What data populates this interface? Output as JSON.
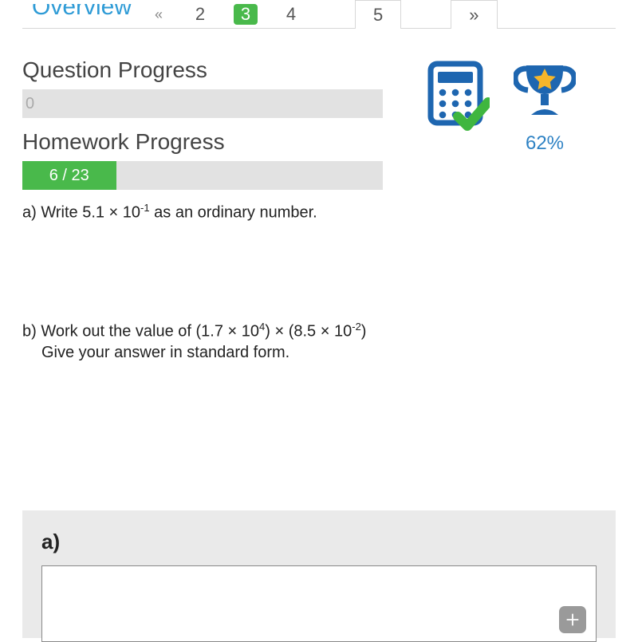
{
  "tabs": {
    "overview_label": "Overview",
    "items": [
      "«",
      "2",
      "3",
      "4",
      "5",
      "»"
    ],
    "current_index": 2
  },
  "progress": {
    "question": {
      "label": "Question Progress",
      "value_text": "0",
      "fill_pct": 0,
      "bar_bg": "#e2e2e2",
      "fill_color": "#49b94b"
    },
    "homework": {
      "label": "Homework Progress",
      "value_text": "6 / 23",
      "fill_pct": 26,
      "bar_bg": "#e2e2e2",
      "fill_color": "#49b94b"
    }
  },
  "questions": {
    "a": {
      "prefix": "a) Write 5.1 × 10",
      "exp": "-1",
      "suffix": " as an ordinary number."
    },
    "b": {
      "line1_p1": "b) Work out the value of (1.7 × 10",
      "line1_e1": "4",
      "line1_p2": ") × (8.5 × 10",
      "line1_e2": "-2",
      "line1_p3": ")",
      "line2": "Give your answer in standard form."
    }
  },
  "right": {
    "trophy_pct": "62%",
    "calc_color": "#1e66b0",
    "check_color": "#3fb63f",
    "trophy_color": "#1e66b0",
    "star_color": "#f6b62a"
  },
  "answer": {
    "label": "a)"
  },
  "colors": {
    "accent_blue": "#2e9bd6",
    "green": "#49b94b",
    "grey_bar": "#e2e2e2",
    "panel_grey": "#eaeaea"
  }
}
